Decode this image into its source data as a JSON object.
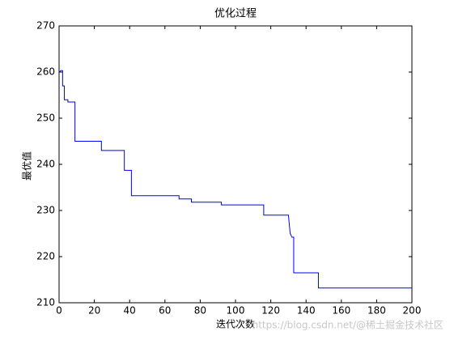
{
  "chart_data": {
    "type": "line",
    "title": "优化过程",
    "x_label": "迭代次数",
    "y_label": "最优值",
    "watermark": "https://blog.csdn.net/@稀土掘金技术社区",
    "x": [
      0,
      1,
      2,
      2,
      3,
      3,
      5,
      5,
      9,
      9,
      24,
      24,
      37,
      37,
      41,
      41,
      68,
      68,
      75,
      75,
      92,
      92,
      116,
      116,
      130,
      131,
      132,
      133,
      133,
      147,
      147,
      200
    ],
    "series": [
      {
        "color": "#0000ff",
        "values": [
          260,
          260.3,
          260.3,
          257,
          257,
          254,
          254,
          253.5,
          253.5,
          245,
          245,
          243,
          243,
          238.7,
          238.7,
          233.2,
          233.2,
          232.5,
          232.5,
          231.8,
          231.8,
          231.2,
          231.2,
          229,
          229,
          225,
          224.2,
          224.2,
          216.5,
          216.5,
          213.2,
          213.2
        ]
      }
    ],
    "xlim": [
      0,
      200
    ],
    "xticks": [
      0,
      20,
      40,
      60,
      80,
      100,
      120,
      140,
      160,
      180,
      200
    ],
    "ylim": [
      210,
      270
    ],
    "yticks": [
      210,
      220,
      230,
      240,
      250,
      260,
      270
    ],
    "grid": false
  }
}
